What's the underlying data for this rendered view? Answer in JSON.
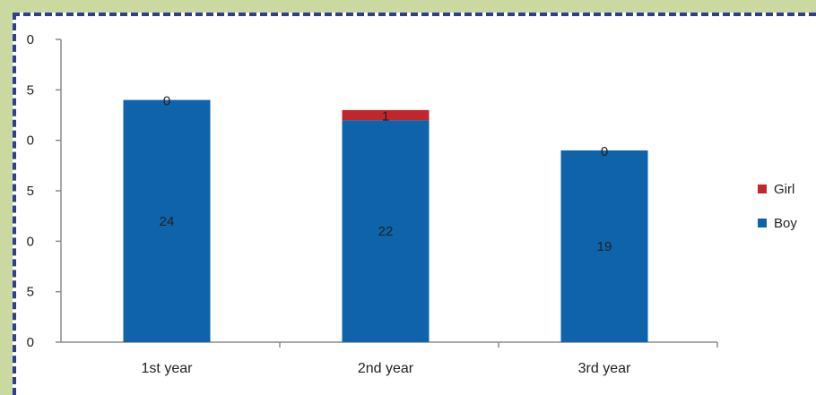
{
  "chart_data": {
    "type": "bar",
    "stacked": true,
    "categories": [
      "1st year",
      "2nd year",
      "3rd year"
    ],
    "series": [
      {
        "name": "Boy",
        "values": [
          24,
          22,
          19
        ],
        "color": "#0e63ab"
      },
      {
        "name": "Girl",
        "values": [
          0,
          1,
          0
        ],
        "color": "#c0272d"
      }
    ],
    "y_tick_labels": [
      "0",
      "5",
      "0",
      "5",
      "0",
      "5",
      "0"
    ],
    "ylim": [
      0,
      30
    ],
    "y_tick_step": 5,
    "grid": false,
    "legend_position": "right",
    "legend_order": [
      "Girl",
      "Boy"
    ],
    "legend_text": [
      "Girl",
      "Boy"
    ]
  }
}
